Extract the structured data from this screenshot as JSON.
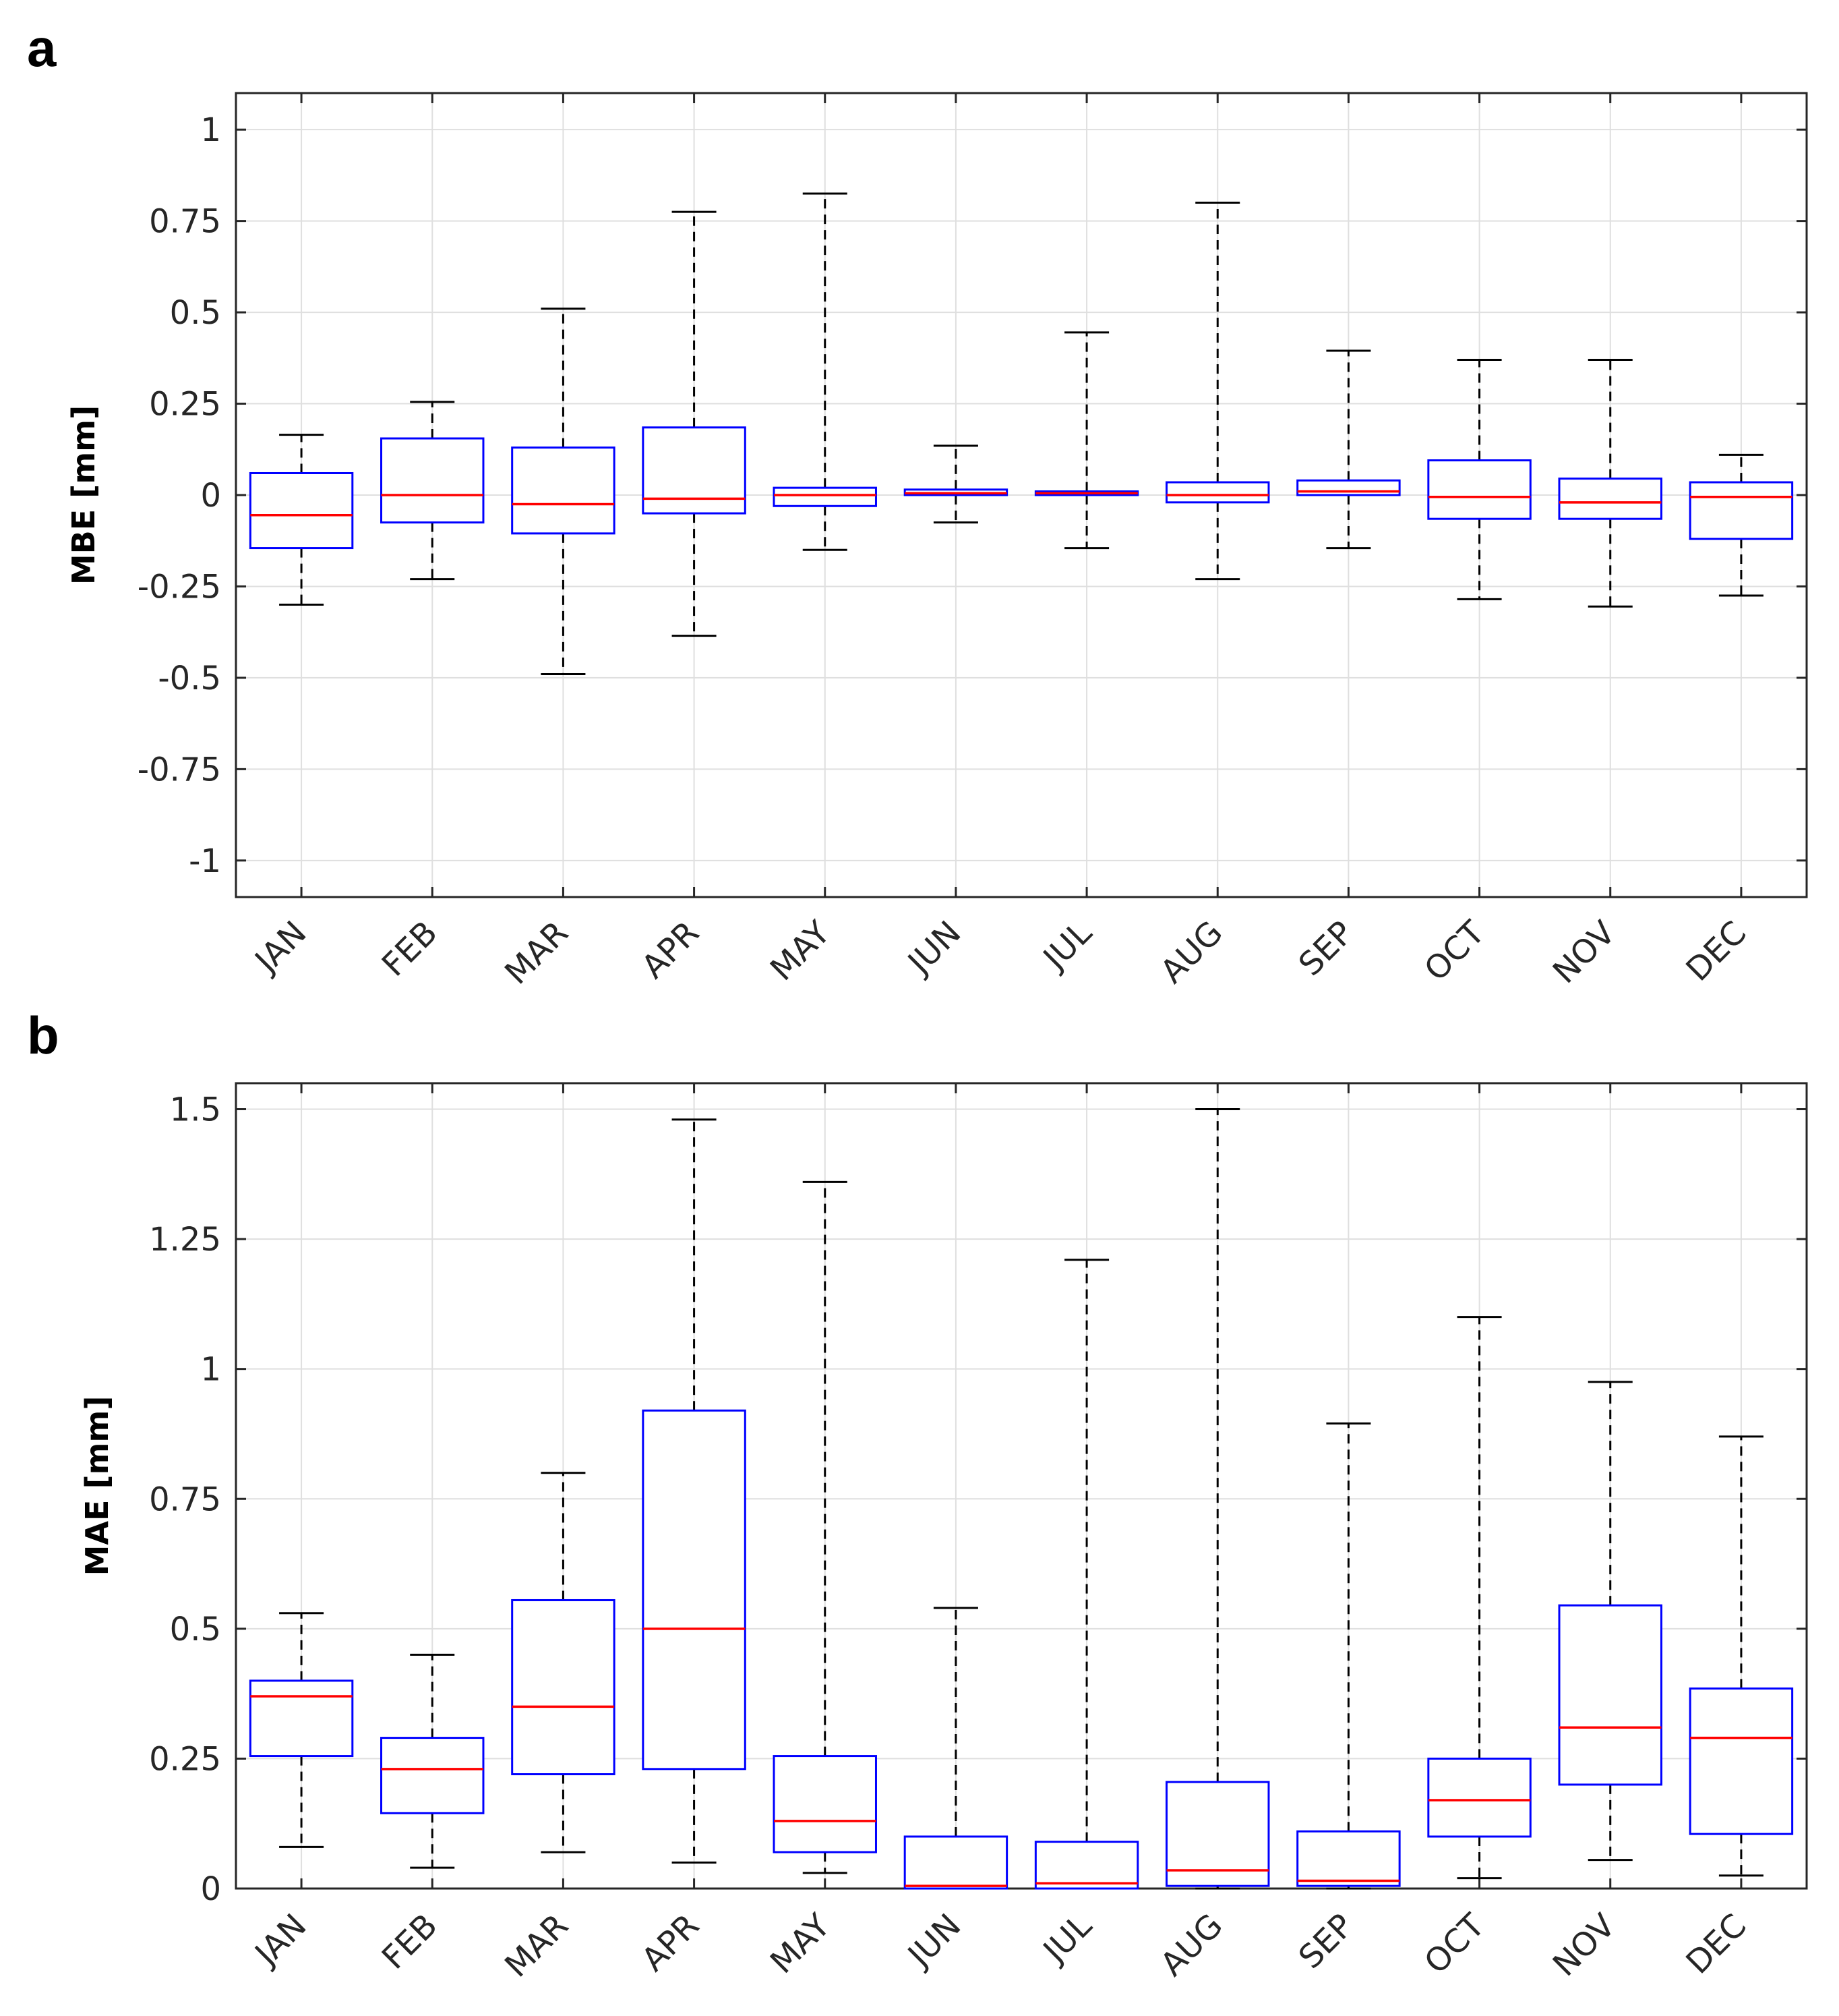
{
  "chart_data": [
    {
      "panel_label": "a",
      "type": "boxplot",
      "ylabel": "MBE [mm]",
      "ylim": [
        -1.1,
        1.1
      ],
      "yticks": [
        -1,
        -0.75,
        -0.5,
        -0.25,
        0,
        0.25,
        0.5,
        0.75,
        1
      ],
      "ytick_labels": [
        "-1",
        "-0.75",
        "-0.5",
        "-0.25",
        "0",
        "0.25",
        "0.5",
        "0.75",
        "1"
      ],
      "grid": true,
      "categories": [
        "JAN",
        "FEB",
        "MAR",
        "APR",
        "MAY",
        "JUN",
        "JUL",
        "AUG",
        "SEP",
        "OCT",
        "NOV",
        "DEC"
      ],
      "boxes": [
        {
          "whisker_low": -0.3,
          "q1": -0.145,
          "median": -0.055,
          "q3": 0.06,
          "whisker_high": 0.165
        },
        {
          "whisker_low": -0.23,
          "q1": -0.075,
          "median": 0.0,
          "q3": 0.155,
          "whisker_high": 0.255
        },
        {
          "whisker_low": -0.49,
          "q1": -0.105,
          "median": -0.025,
          "q3": 0.13,
          "whisker_high": 0.51
        },
        {
          "whisker_low": -0.385,
          "q1": -0.05,
          "median": -0.01,
          "q3": 0.185,
          "whisker_high": 0.775
        },
        {
          "whisker_low": -0.15,
          "q1": -0.03,
          "median": 0.0,
          "q3": 0.02,
          "whisker_high": 0.825
        },
        {
          "whisker_low": -0.075,
          "q1": 0.0,
          "median": 0.005,
          "q3": 0.015,
          "whisker_high": 0.135
        },
        {
          "whisker_low": -0.145,
          "q1": 0.0,
          "median": 0.005,
          "q3": 0.01,
          "whisker_high": 0.445
        },
        {
          "whisker_low": -0.23,
          "q1": -0.02,
          "median": 0.0,
          "q3": 0.035,
          "whisker_high": 0.8
        },
        {
          "whisker_low": -0.145,
          "q1": 0.0,
          "median": 0.01,
          "q3": 0.04,
          "whisker_high": 0.395
        },
        {
          "whisker_low": -0.285,
          "q1": -0.065,
          "median": -0.005,
          "q3": 0.095,
          "whisker_high": 0.37
        },
        {
          "whisker_low": -0.305,
          "q1": -0.065,
          "median": -0.02,
          "q3": 0.045,
          "whisker_high": 0.37
        },
        {
          "whisker_low": -0.275,
          "q1": -0.12,
          "median": -0.005,
          "q3": 0.035,
          "whisker_high": 0.11
        }
      ]
    },
    {
      "panel_label": "b",
      "type": "boxplot",
      "ylabel": "MAE [mm]",
      "ylim": [
        0,
        1.55
      ],
      "yticks": [
        0,
        0.25,
        0.5,
        0.75,
        1,
        1.25,
        1.5
      ],
      "ytick_labels": [
        "0",
        "0.25",
        "0.5",
        "0.75",
        "1",
        "1.25",
        "1.5"
      ],
      "grid": true,
      "categories": [
        "JAN",
        "FEB",
        "MAR",
        "APR",
        "MAY",
        "JUN",
        "JUL",
        "AUG",
        "SEP",
        "OCT",
        "NOV",
        "DEC"
      ],
      "boxes": [
        {
          "whisker_low": 0.08,
          "q1": 0.255,
          "median": 0.37,
          "q3": 0.4,
          "whisker_high": 0.53
        },
        {
          "whisker_low": 0.04,
          "q1": 0.145,
          "median": 0.23,
          "q3": 0.29,
          "whisker_high": 0.45
        },
        {
          "whisker_low": 0.07,
          "q1": 0.22,
          "median": 0.35,
          "q3": 0.555,
          "whisker_high": 0.8
        },
        {
          "whisker_low": 0.05,
          "q1": 0.23,
          "median": 0.5,
          "q3": 0.92,
          "whisker_high": 1.48
        },
        {
          "whisker_low": 0.03,
          "q1": 0.07,
          "median": 0.13,
          "q3": 0.255,
          "whisker_high": 1.36
        },
        {
          "whisker_low": 0.0,
          "q1": 0.0,
          "median": 0.005,
          "q3": 0.1,
          "whisker_high": 0.54
        },
        {
          "whisker_low": 0.0,
          "q1": 0.0,
          "median": 0.01,
          "q3": 0.09,
          "whisker_high": 1.21
        },
        {
          "whisker_low": 0.0,
          "q1": 0.005,
          "median": 0.035,
          "q3": 0.205,
          "whisker_high": 1.5
        },
        {
          "whisker_low": 0.0,
          "q1": 0.005,
          "median": 0.015,
          "q3": 0.11,
          "whisker_high": 0.895
        },
        {
          "whisker_low": 0.02,
          "q1": 0.1,
          "median": 0.17,
          "q3": 0.25,
          "whisker_high": 1.1
        },
        {
          "whisker_low": 0.055,
          "q1": 0.2,
          "median": 0.31,
          "q3": 0.545,
          "whisker_high": 0.975
        },
        {
          "whisker_low": 0.025,
          "q1": 0.105,
          "median": 0.29,
          "q3": 0.385,
          "whisker_high": 0.87
        }
      ]
    }
  ],
  "colors": {
    "box": "#0000ff",
    "median": "#ff0000",
    "whisker": "#000000",
    "grid": "#dfdfdf",
    "axis": "#262626"
  }
}
